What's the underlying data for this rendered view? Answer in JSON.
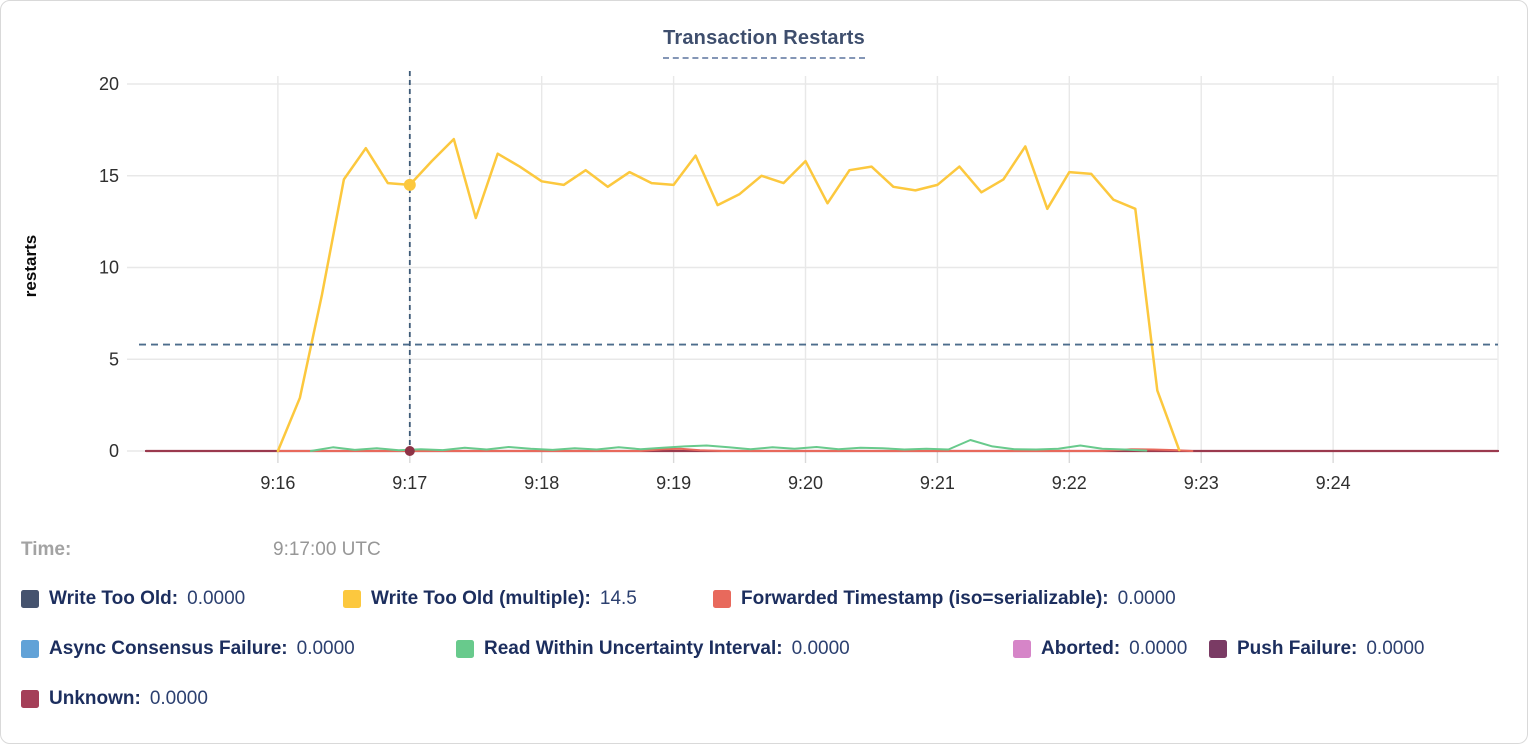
{
  "title": {
    "text": "Transaction Restarts"
  },
  "tooltip": {
    "time_label": "Time:",
    "time_value": "9:17:00 UTC"
  },
  "legend": {
    "rows": [
      [
        {
          "label": "Write Too Old:",
          "value": "0.0000",
          "color": "#45536e"
        },
        {
          "label": "Write Too Old (multiple):",
          "value": "14.5",
          "color": "#fcc83e"
        },
        {
          "label": "Forwarded Timestamp (iso=serializable):",
          "value": "0.0000",
          "color": "#e8695c"
        }
      ],
      [
        {
          "label": "Async Consensus Failure:",
          "value": "0.0000",
          "color": "#61a2d7"
        },
        {
          "label": "Read Within Uncertainty Interval:",
          "value": "0.0000",
          "color": "#68ca8c"
        },
        {
          "label": "Aborted:",
          "value": "0.0000",
          "color": "#d685c8"
        },
        {
          "label": "Push Failure:",
          "value": "0.0000",
          "color": "#7a3b64"
        }
      ],
      [
        {
          "label": "Unknown:",
          "value": "0.0000",
          "color": "#a43f58"
        }
      ]
    ]
  },
  "chart_data": {
    "type": "line",
    "title": "Transaction Restarts",
    "xlabel": "",
    "ylabel": "restarts",
    "ylim": [
      0,
      20
    ],
    "yticks": [
      0,
      5,
      10,
      15,
      20
    ],
    "x_unit": "seconds after 9:15:00 UTC",
    "xlim": [
      0,
      615
    ],
    "xticks": [
      {
        "t": 60,
        "label": "9:16"
      },
      {
        "t": 120,
        "label": "9:17"
      },
      {
        "t": 180,
        "label": "9:18"
      },
      {
        "t": 240,
        "label": "9:19"
      },
      {
        "t": 300,
        "label": "9:20"
      },
      {
        "t": 360,
        "label": "9:21"
      },
      {
        "t": 420,
        "label": "9:22"
      },
      {
        "t": 480,
        "label": "9:23"
      },
      {
        "t": 540,
        "label": "9:24"
      }
    ],
    "grid": true,
    "legend_position": "bottom",
    "series": [
      {
        "name": "Write Too Old",
        "color": "#45536e",
        "width": 2,
        "points": [
          [
            0,
            0
          ],
          [
            615,
            0
          ]
        ]
      },
      {
        "name": "Async Consensus Failure",
        "color": "#61a2d7",
        "width": 2,
        "points": [
          [
            0,
            0
          ],
          [
            615,
            0
          ]
        ]
      },
      {
        "name": "Aborted",
        "color": "#d685c8",
        "width": 2,
        "points": [
          [
            0,
            0
          ],
          [
            615,
            0
          ]
        ]
      },
      {
        "name": "Push Failure",
        "color": "#7a3b64",
        "width": 2,
        "points": [
          [
            0,
            0
          ],
          [
            615,
            0
          ]
        ]
      },
      {
        "name": "Unknown",
        "color": "#9b3a4e",
        "width": 2.2,
        "points": [
          [
            0,
            0
          ],
          [
            615,
            0
          ]
        ]
      },
      {
        "name": "Forwarded Timestamp (iso=serializable)",
        "color": "#e8695c",
        "width": 2,
        "points": [
          [
            60,
            0
          ],
          [
            225,
            0
          ],
          [
            235,
            0.1
          ],
          [
            243,
            0.12
          ],
          [
            252,
            0.04
          ],
          [
            262,
            0
          ],
          [
            435,
            0
          ],
          [
            448,
            0.1
          ],
          [
            458,
            0.08
          ],
          [
            468,
            0.05
          ],
          [
            476,
            0
          ]
        ]
      },
      {
        "name": "Read Within Uncertainty Interval",
        "color": "#68ca8c",
        "width": 2,
        "points": [
          [
            75,
            0
          ],
          [
            85,
            0.2
          ],
          [
            95,
            0.06
          ],
          [
            105,
            0.15
          ],
          [
            115,
            0.04
          ],
          [
            125,
            0.1
          ],
          [
            135,
            0.05
          ],
          [
            145,
            0.18
          ],
          [
            155,
            0.08
          ],
          [
            165,
            0.22
          ],
          [
            175,
            0.12
          ],
          [
            185,
            0.06
          ],
          [
            195,
            0.15
          ],
          [
            205,
            0.08
          ],
          [
            215,
            0.2
          ],
          [
            225,
            0.1
          ],
          [
            235,
            0.18
          ],
          [
            245,
            0.25
          ],
          [
            255,
            0.3
          ],
          [
            265,
            0.2
          ],
          [
            275,
            0.1
          ],
          [
            285,
            0.2
          ],
          [
            295,
            0.12
          ],
          [
            305,
            0.22
          ],
          [
            315,
            0.1
          ],
          [
            325,
            0.18
          ],
          [
            335,
            0.15
          ],
          [
            345,
            0.08
          ],
          [
            355,
            0.12
          ],
          [
            365,
            0.08
          ],
          [
            375,
            0.6
          ],
          [
            385,
            0.25
          ],
          [
            395,
            0.1
          ],
          [
            405,
            0.08
          ],
          [
            415,
            0.12
          ],
          [
            425,
            0.3
          ],
          [
            435,
            0.12
          ],
          [
            445,
            0.08
          ],
          [
            455,
            0.02
          ]
        ]
      },
      {
        "name": "Write Too Old (multiple)",
        "color": "#fcc83e",
        "width": 2.5,
        "points": [
          [
            60,
            0
          ],
          [
            70,
            2.9
          ],
          [
            80,
            8.5
          ],
          [
            90,
            14.8
          ],
          [
            100,
            16.5
          ],
          [
            110,
            14.6
          ],
          [
            120,
            14.5
          ],
          [
            130,
            15.8
          ],
          [
            140,
            17.0
          ],
          [
            150,
            12.7
          ],
          [
            160,
            16.2
          ],
          [
            170,
            15.5
          ],
          [
            180,
            14.7
          ],
          [
            190,
            14.5
          ],
          [
            200,
            15.3
          ],
          [
            210,
            14.4
          ],
          [
            220,
            15.2
          ],
          [
            230,
            14.6
          ],
          [
            240,
            14.5
          ],
          [
            250,
            16.1
          ],
          [
            260,
            13.4
          ],
          [
            270,
            14.0
          ],
          [
            280,
            15.0
          ],
          [
            290,
            14.6
          ],
          [
            300,
            15.8
          ],
          [
            310,
            13.5
          ],
          [
            320,
            15.3
          ],
          [
            330,
            15.5
          ],
          [
            340,
            14.4
          ],
          [
            350,
            14.2
          ],
          [
            360,
            14.5
          ],
          [
            370,
            15.5
          ],
          [
            380,
            14.1
          ],
          [
            390,
            14.8
          ],
          [
            400,
            16.6
          ],
          [
            410,
            13.2
          ],
          [
            420,
            15.2
          ],
          [
            430,
            15.1
          ],
          [
            440,
            13.7
          ],
          [
            450,
            13.2
          ],
          [
            460,
            3.3
          ],
          [
            470,
            0.05
          ]
        ]
      }
    ],
    "hover": {
      "t": 120,
      "time_label": "9:17:00 UTC",
      "crosshair_value": 5.8,
      "highlighted_points": [
        {
          "series": "Write Too Old (multiple)",
          "value": 14.5,
          "color": "#fcc83e"
        },
        {
          "series": "Unknown",
          "value": 0,
          "color": "#8e3346"
        }
      ]
    }
  }
}
